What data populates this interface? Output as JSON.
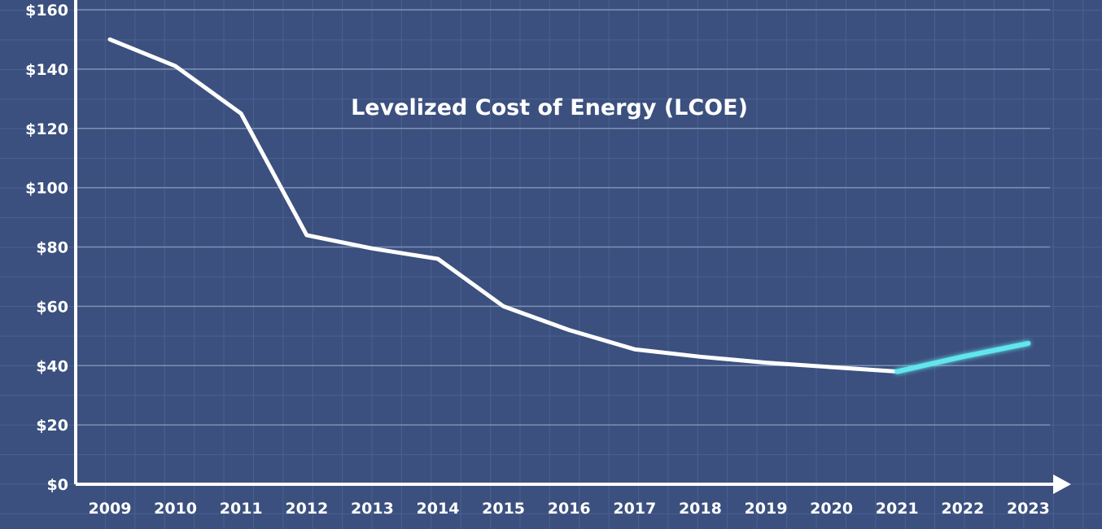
{
  "chart_data": {
    "type": "line",
    "title": "Levelized Cost of Energy (LCOE)",
    "xlabel": "",
    "ylabel": "",
    "categories": [
      "2009",
      "2010",
      "2011",
      "2012",
      "2013",
      "2014",
      "2015",
      "2016",
      "2017",
      "2018",
      "2019",
      "2020",
      "2021",
      "2022",
      "2023"
    ],
    "y_ticks": [
      "$0",
      "$20",
      "$40",
      "$60",
      "$80",
      "$100",
      "$120",
      "$140",
      "$160"
    ],
    "ylim": [
      0,
      160
    ],
    "grid": true,
    "series": [
      {
        "values": [
          150,
          141,
          125,
          84,
          79.5,
          76,
          60,
          52,
          45.5,
          43,
          41,
          39.5,
          38,
          43,
          47.5
        ],
        "colors": {
          "primary": "#ffffff",
          "highlight": "#62e6ee",
          "highlight_from_index": 12
        }
      }
    ],
    "colors": {
      "background": "#3b507e",
      "minor_grid": "#4a6193",
      "major_grid": "#7d8fb4",
      "axis": "#ffffff"
    }
  }
}
